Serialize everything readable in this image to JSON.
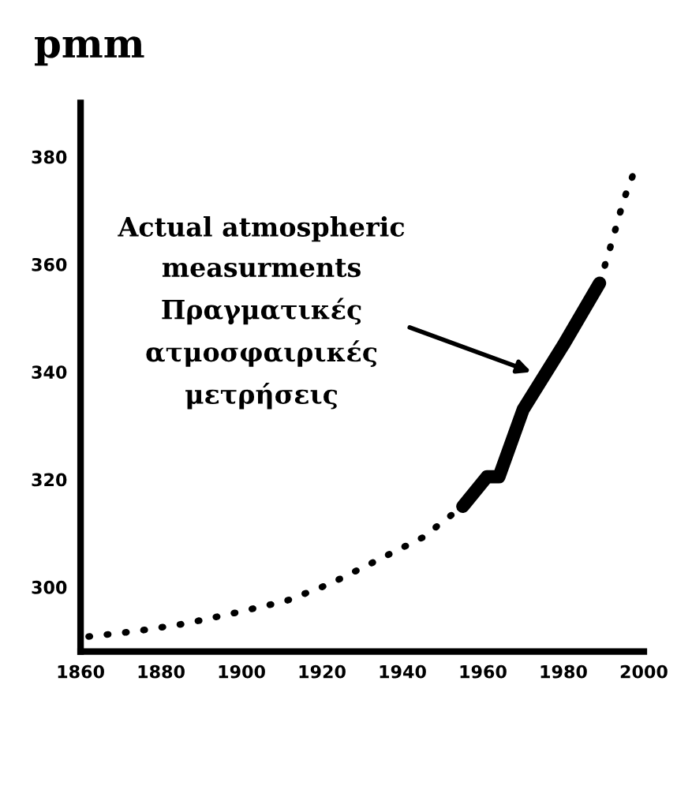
{
  "chart_data": {
    "type": "line",
    "title": "pmm",
    "series": [
      {
        "color": "#000000",
        "line_style": "dotted",
        "x": [
          1862,
          1874,
          1886,
          1899,
          1911,
          1922,
          1933,
          1945,
          1951,
          1955
        ],
        "values": [
          290.8,
          291.8,
          293.2,
          295.3,
          297.4,
          300.6,
          304.7,
          309.2,
          312.7,
          315
        ]
      },
      {
        "color": "#000000",
        "line_style": "solid",
        "x": [
          1955,
          1961,
          1964,
          1970,
          1980,
          1989
        ],
        "values": [
          315,
          320.5,
          320.5,
          333,
          345,
          356.5
        ]
      },
      {
        "color": "#000000",
        "line_style": "dotted",
        "x": [
          1989,
          1992,
          1995,
          1998
        ],
        "values": [
          356.5,
          364,
          372,
          378
        ]
      }
    ],
    "xlim": [
      1860,
      2000
    ],
    "xticks": [
      1860,
      1880,
      1900,
      1920,
      1940,
      1960,
      1980,
      2000
    ],
    "ylim": [
      288,
      390
    ],
    "yticks": [
      300,
      320,
      340,
      360,
      380
    ],
    "grid": false,
    "legend": false,
    "annotations": [
      {
        "text": "Actual atmospheric\nmeasurments\nΠραγματικές\nατμοσφαιρικές\nμετρήσεις",
        "x": 1972,
        "y": 340
      }
    ]
  }
}
